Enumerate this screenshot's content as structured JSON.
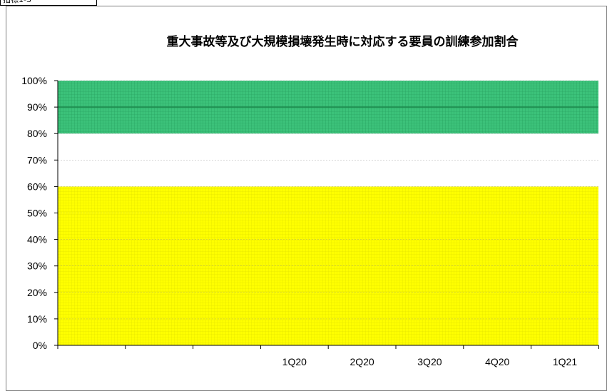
{
  "header_tag": "指標1-3",
  "chart_data": {
    "type": "area",
    "title": "重大事故等及び大規模損壊発生時に対応する要員の訓練参加割合",
    "xlabel": "",
    "ylabel": "",
    "categories": [
      "",
      "",
      "",
      "1Q20",
      "2Q20",
      "3Q20",
      "4Q20",
      "1Q21"
    ],
    "ylim": [
      0,
      1
    ],
    "yticks": [
      "0%",
      "10%",
      "20%",
      "30%",
      "40%",
      "50%",
      "60%",
      "70%",
      "80%",
      "90%",
      "100%"
    ],
    "bands": [
      {
        "from": 0.0,
        "to": 0.6,
        "color": "#ffff00",
        "pattern": "yellow-grid"
      },
      {
        "from": 0.6,
        "to": 0.8,
        "color": "#ffffff",
        "pattern": "none"
      },
      {
        "from": 0.8,
        "to": 1.0,
        "color": "#3cc27a",
        "pattern": "green-grid"
      }
    ],
    "threshold_line": 0.9,
    "grid": true,
    "legend": "none"
  }
}
